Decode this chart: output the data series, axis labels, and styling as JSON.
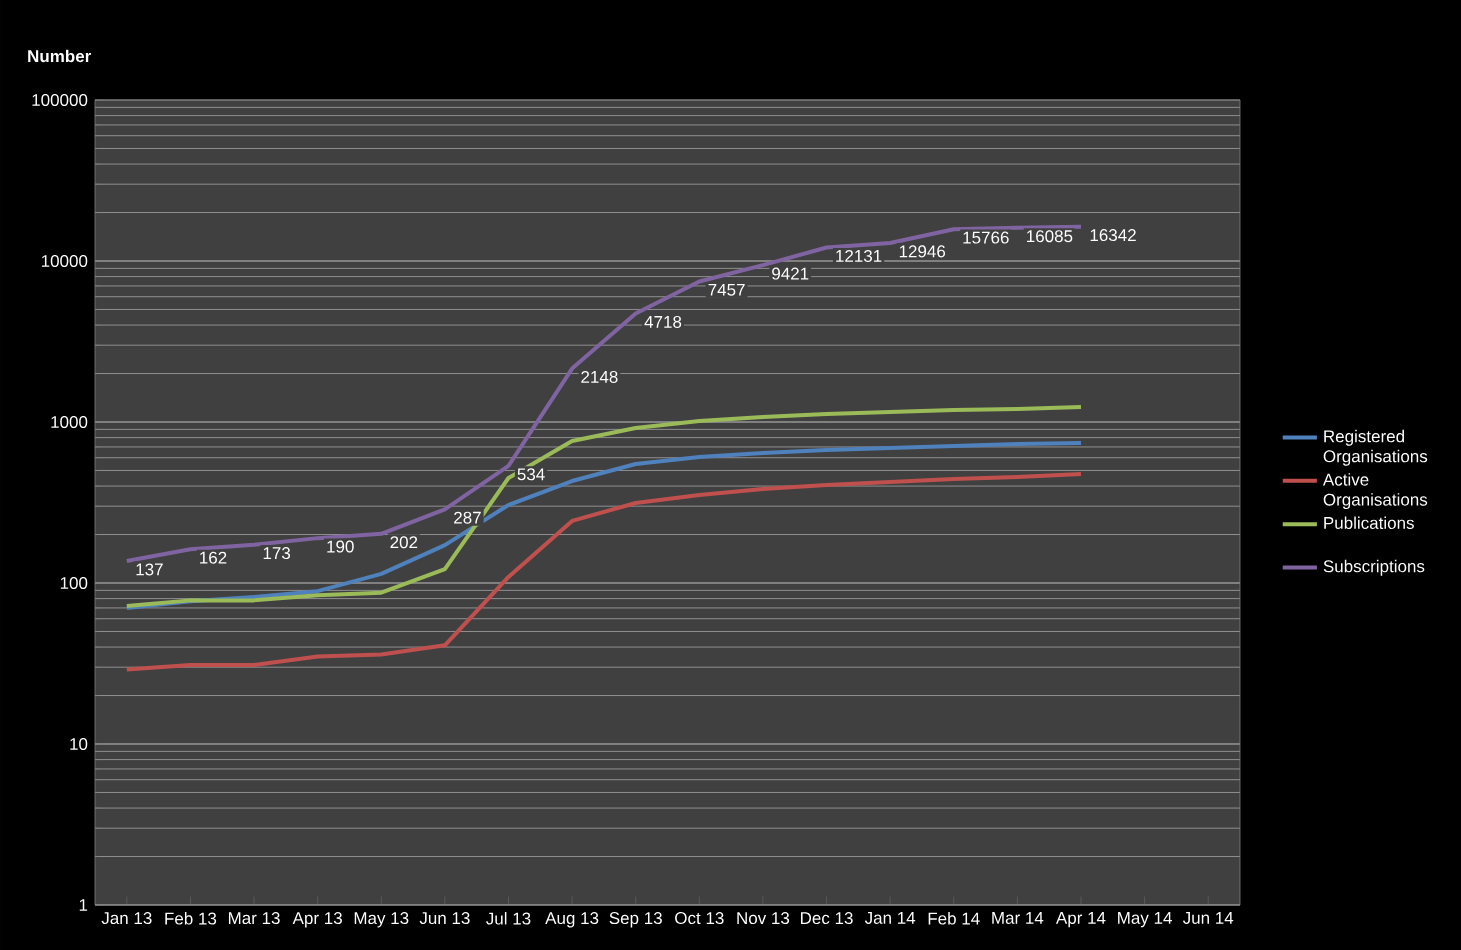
{
  "chart_data": {
    "type": "line",
    "ylabel": "Number",
    "log": true,
    "grid": "y",
    "legend": "right",
    "categories": [
      "Jan 13",
      "Feb 13",
      "Mar 13",
      "Apr 13",
      "May 13",
      "Jun 13",
      "Jul 13",
      "Aug 13",
      "Sep 13",
      "Oct 13",
      "Nov 13",
      "Dec 13",
      "Jan 14",
      "Feb 14",
      "Mar 14",
      "Apr 14",
      "May 14",
      "Jun 14"
    ],
    "ylim": [
      1,
      100000
    ],
    "yticks": [
      1,
      10,
      100,
      1000,
      10000,
      100000
    ],
    "series": [
      {
        "name": "Registered Organisations",
        "color": "#4f81bd",
        "values": [
          70,
          77,
          82,
          89,
          114,
          172,
          305,
          430,
          548,
          607,
          642,
          670,
          690,
          710,
          730,
          741,
          null,
          null
        ]
      },
      {
        "name": "Active Organisations",
        "color": "#c0504d",
        "values": [
          29,
          31,
          31,
          35,
          36,
          41,
          109,
          243,
          314,
          352,
          384,
          406,
          424,
          442,
          455,
          475,
          null,
          null
        ]
      },
      {
        "name": "Publications",
        "color": "#9bbb59",
        "values": [
          72,
          78,
          78,
          84,
          87,
          122,
          449,
          762,
          918,
          1015,
          1075,
          1122,
          1155,
          1188,
          1205,
          1240,
          null,
          null
        ]
      },
      {
        "name": "Subscriptions",
        "color": "#8064a2",
        "values": [
          137,
          162,
          173,
          190,
          202,
          287,
          534,
          2148,
          4718,
          7457,
          9421,
          12131,
          12946,
          15766,
          16085,
          16342,
          null,
          null
        ],
        "value_labels": [
          "137",
          "162",
          "173",
          "190",
          "202",
          "287",
          "534",
          "2148",
          "4718",
          "7457",
          "9421",
          "12131",
          "12946",
          "15766",
          "16085",
          "16342",
          null,
          null
        ]
      }
    ]
  }
}
